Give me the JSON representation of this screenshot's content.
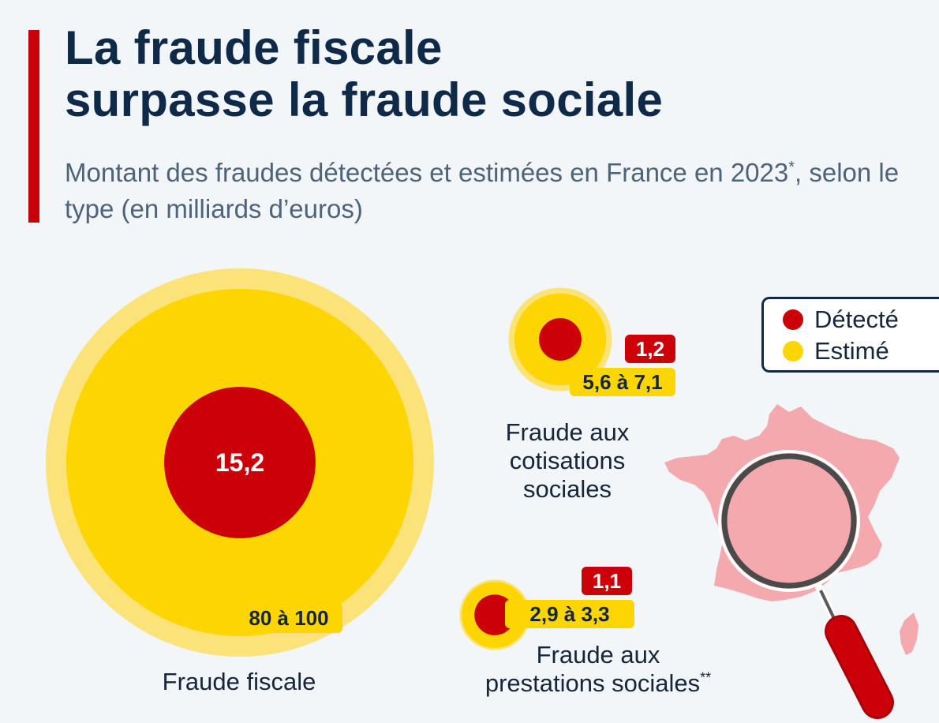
{
  "header": {
    "title_line1": "La fraude fiscale",
    "title_line2": "surpasse la fraude sociale",
    "subtitle_part1": "Montant des fraudes détectées et estimées en France en 2023",
    "subtitle_sup": "*",
    "subtitle_part2": ", selon le type (en milliards d’euros)"
  },
  "legend": {
    "detected_label": "Détecté",
    "estimated_label": "Estimé"
  },
  "colors": {
    "detected": "#cc0008",
    "estimated": "#fdd500",
    "estimated_halo": "#fbe37a",
    "title": "#0f2a48",
    "accent": "#c8000a",
    "map": "#f3a9ad"
  },
  "chart_data": {
    "type": "bubble",
    "title": "La fraude fiscale surpasse la fraude sociale",
    "unit": "milliards d’euros",
    "series": [
      {
        "name": "Détecté",
        "role": "detected"
      },
      {
        "name": "Estimé",
        "role": "estimated"
      }
    ],
    "categories": [
      {
        "name": "Fraude fiscale",
        "name_lines": [
          "Fraude fiscale"
        ],
        "name_sup": "",
        "detected": 15.2,
        "detected_label": "15,2",
        "estimated_min": 80,
        "estimated_max": 100,
        "estimated_label": "80 à 100"
      },
      {
        "name": "Fraude aux cotisations sociales",
        "name_lines": [
          "Fraude aux",
          "cotisations",
          "sociales"
        ],
        "name_sup": "",
        "detected": 1.2,
        "detected_label": "1,2",
        "estimated_min": 5.6,
        "estimated_max": 7.1,
        "estimated_label": "5,6 à 7,1"
      },
      {
        "name": "Fraude aux prestations sociales",
        "name_lines": [
          "Fraude aux",
          "prestations sociales"
        ],
        "name_sup": "**",
        "detected": 1.1,
        "detected_label": "1,1",
        "estimated_min": 2.9,
        "estimated_max": 3.3,
        "estimated_label": "2,9 à 3,3"
      }
    ]
  }
}
